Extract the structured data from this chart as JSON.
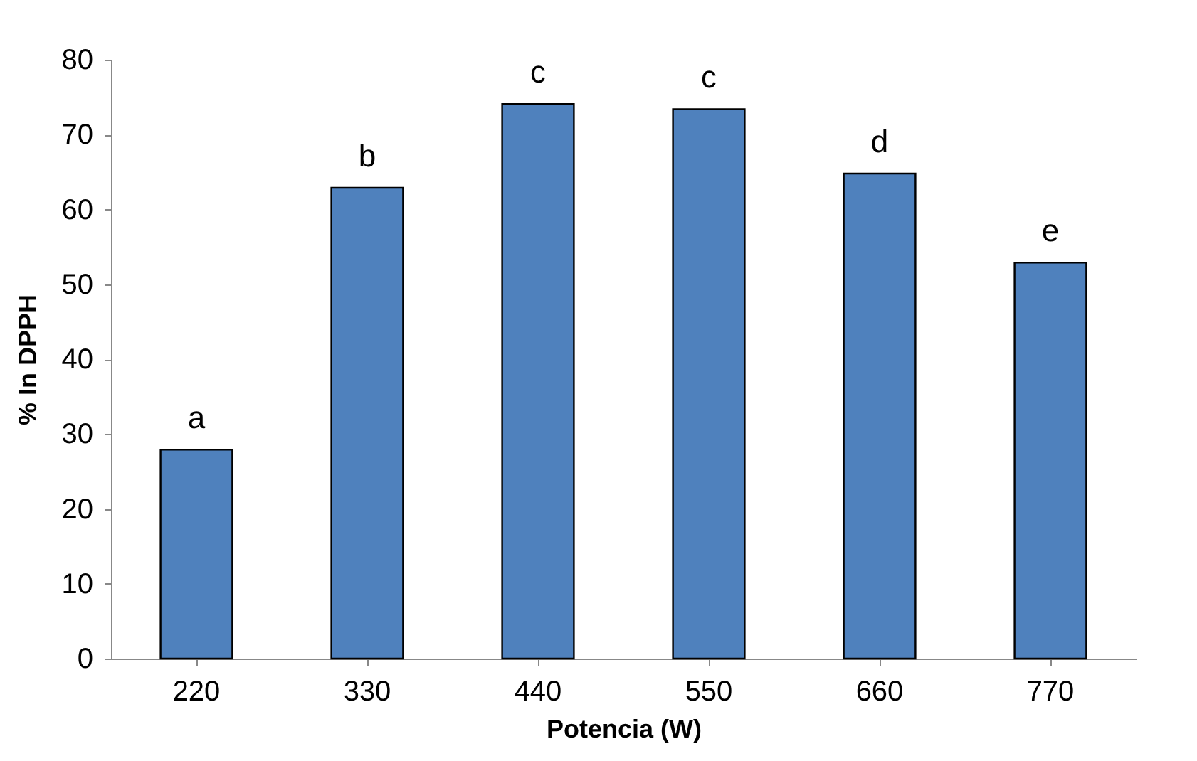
{
  "chart_data": {
    "type": "bar",
    "xlabel": "Potencia (W)",
    "ylabel": "% In DPPH",
    "categories": [
      "220",
      "330",
      "440",
      "550",
      "660",
      "770"
    ],
    "values": [
      27.9,
      62.9,
      74.1,
      73.4,
      64.8,
      52.9
    ],
    "color": "#4f81bd",
    "ylim": [
      0,
      80
    ],
    "yticks": [
      0,
      10,
      20,
      30,
      40,
      50,
      60,
      70,
      80
    ],
    "grid": false,
    "annotations": [
      {
        "text": "a",
        "x": "220",
        "y": 27.9
      },
      {
        "text": "b",
        "x": "330",
        "y": 62.9
      },
      {
        "text": "c",
        "x": "440",
        "y": 74.1
      },
      {
        "text": "c",
        "x": "550",
        "y": 73.4
      },
      {
        "text": "d",
        "x": "660",
        "y": 64.8
      },
      {
        "text": "e",
        "x": "770",
        "y": 52.9
      }
    ]
  }
}
